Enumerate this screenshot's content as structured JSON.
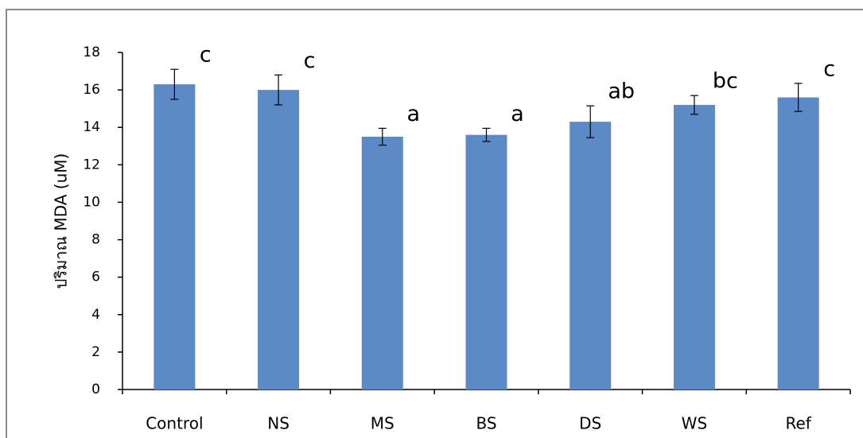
{
  "chart_data": {
    "type": "bar",
    "y_label": "ปริมาณ MDA (uM)",
    "categories": [
      "Control",
      "NS",
      "MS",
      "BS",
      "DS",
      "WS",
      "Ref"
    ],
    "values": [
      16.3,
      16.0,
      13.5,
      13.6,
      14.3,
      15.2,
      15.6
    ],
    "errors": [
      0.8,
      0.8,
      0.45,
      0.35,
      0.85,
      0.5,
      0.75
    ],
    "annotations": [
      "c",
      "c",
      "a",
      "a",
      "ab",
      "bc",
      "c"
    ],
    "color": "#5b8ac6",
    "ylim": [
      0,
      18
    ],
    "yticks": [
      0,
      2,
      4,
      6,
      8,
      10,
      12,
      14,
      16,
      18
    ],
    "grid": false
  }
}
